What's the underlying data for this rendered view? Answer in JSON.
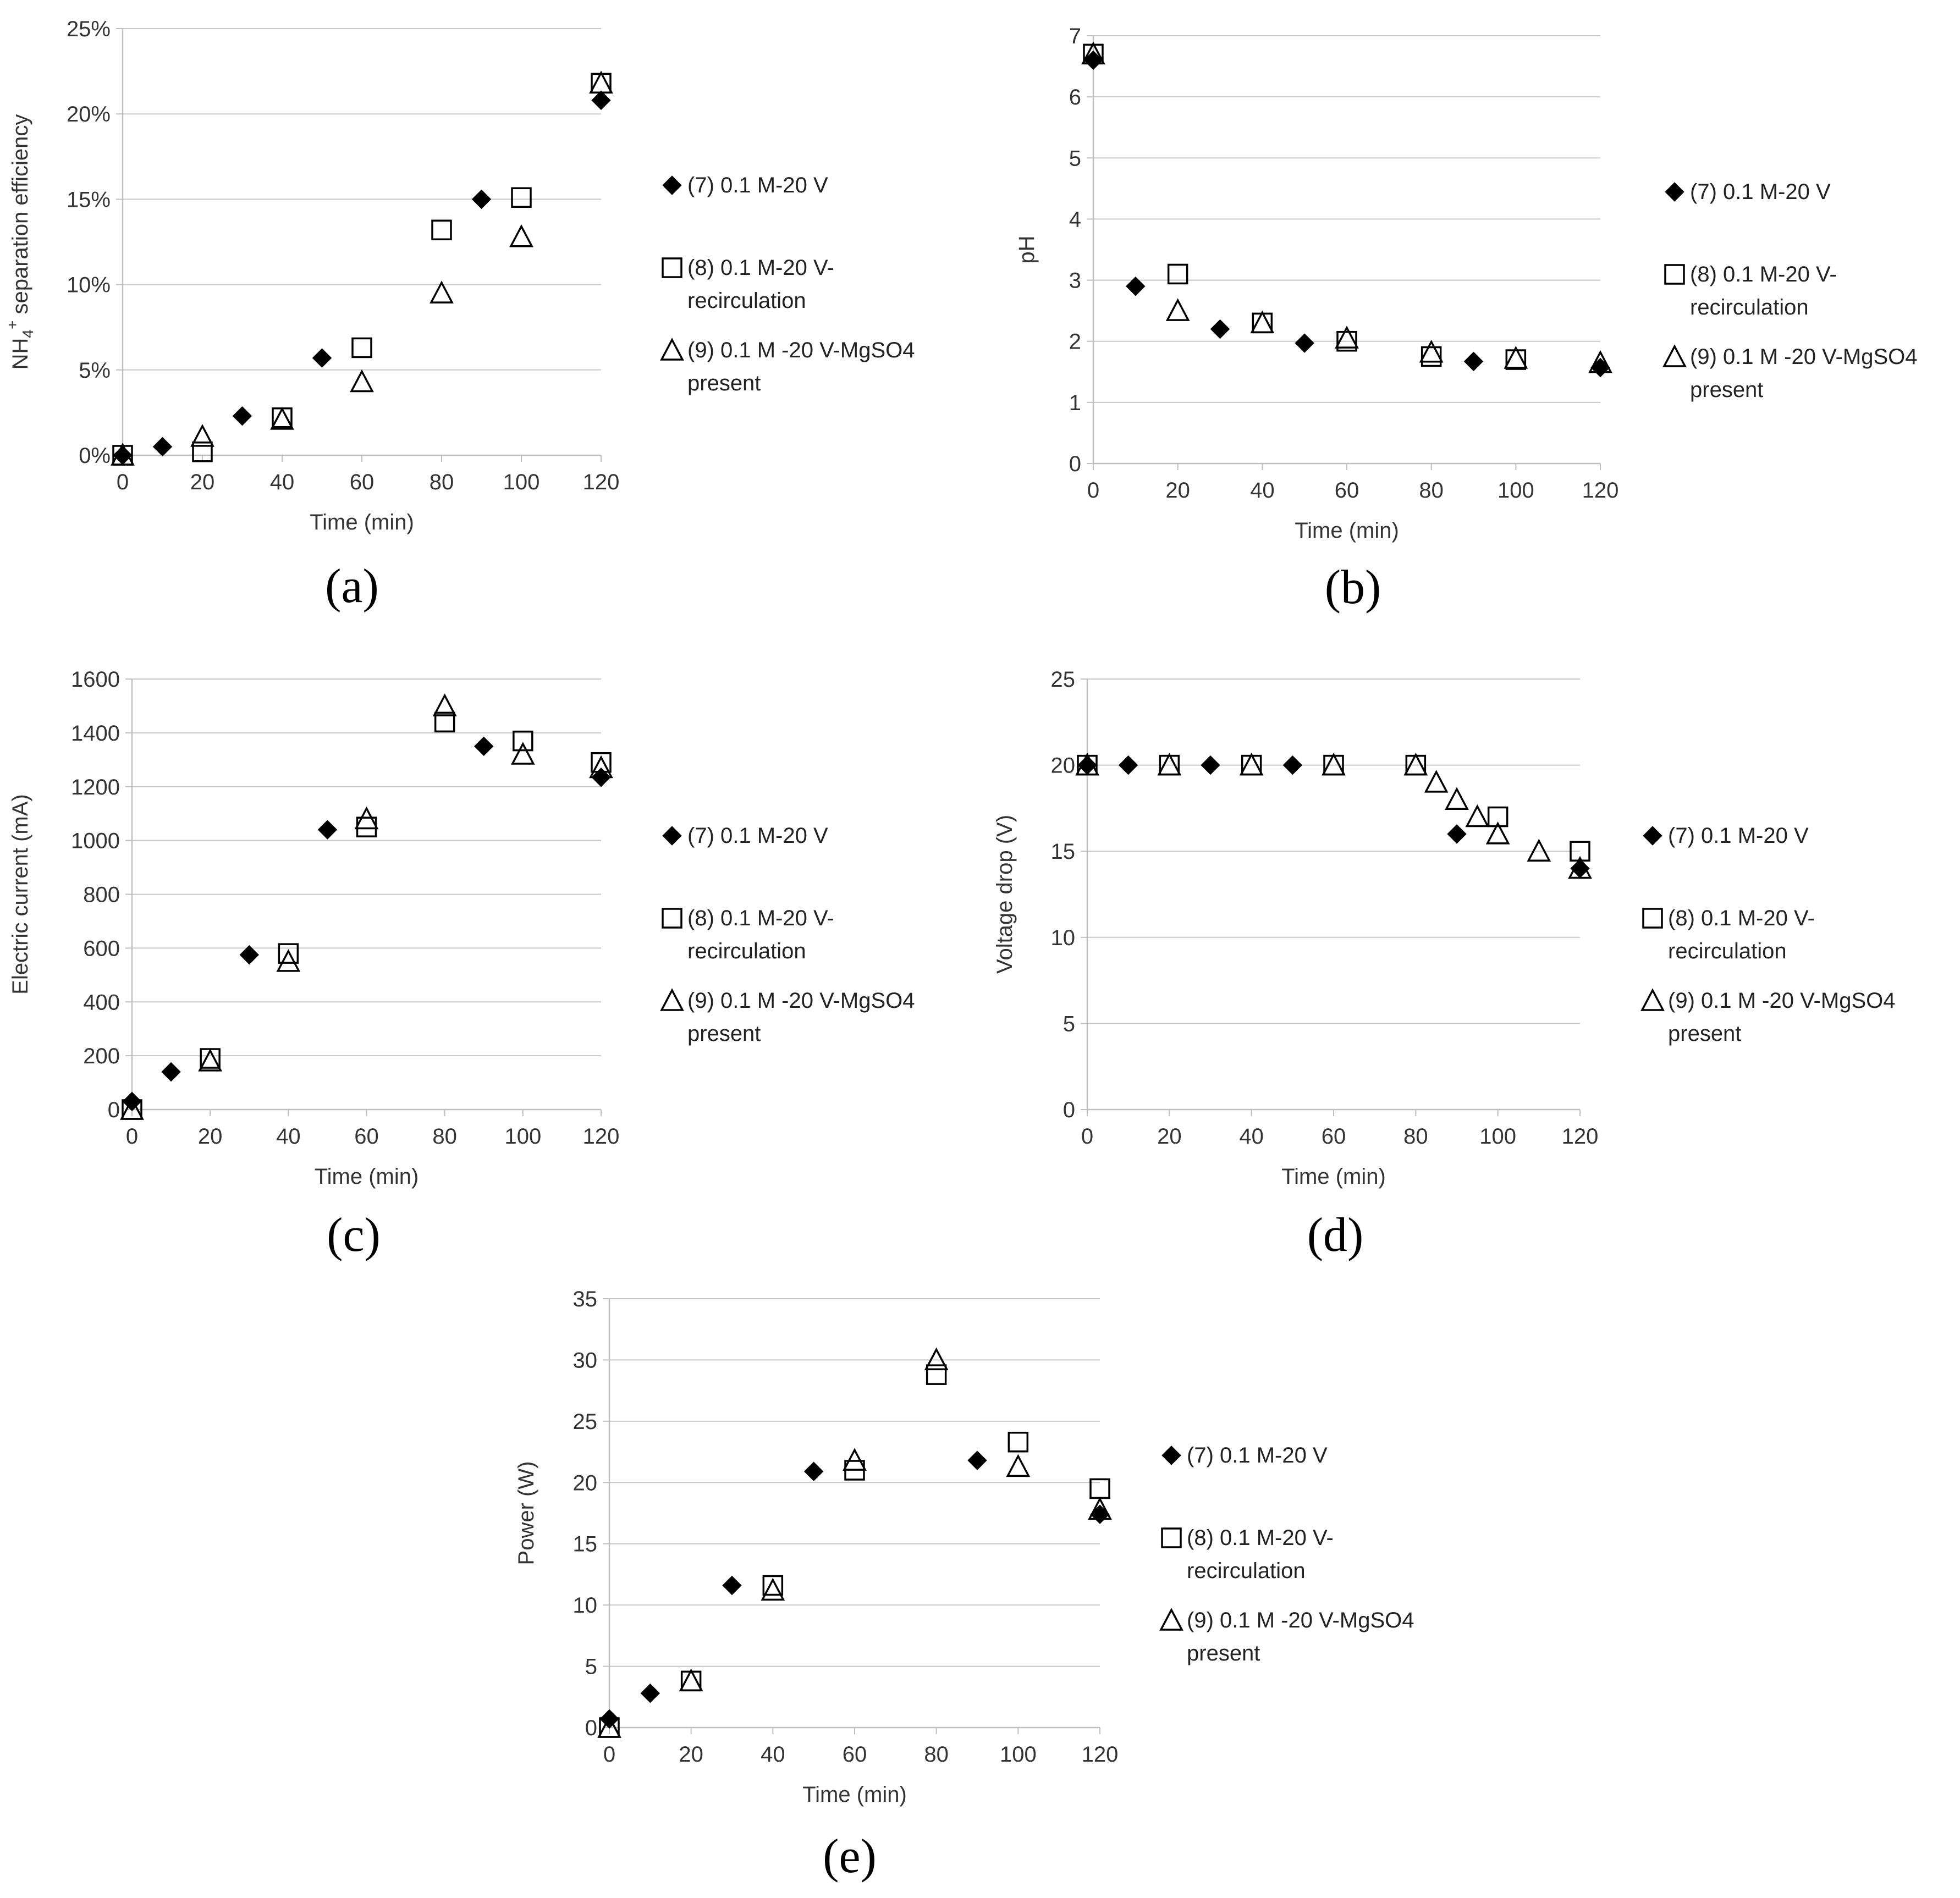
{
  "legend_labels": {
    "s7": "(7) 0.1 M-20 V",
    "s8_line1": "(8) 0.1 M-20 V-",
    "s8_line2": "recirculation",
    "s9_line1": "(9) 0.1 M -20 V-MgSO4",
    "s9_line2": "present"
  },
  "colors": {
    "axis": "#bfbfbf",
    "grid": "#c8c8c8",
    "marker": "#000000"
  },
  "chart_data": [
    {
      "id": "a",
      "panel_label": "(a)",
      "type": "scatter",
      "xlabel": "Time (min)",
      "ylabel_main": "NH",
      "ylabel_sub": "4",
      "ylabel_sup": "+",
      "ylabel_rest": " separation efficiency",
      "xlim": [
        0,
        120
      ],
      "ylim": [
        0,
        25
      ],
      "xticks": [
        0,
        20,
        40,
        60,
        80,
        100,
        120
      ],
      "yticks": [
        0,
        5,
        10,
        15,
        20,
        25
      ],
      "ytick_labels": [
        "0%",
        "5%",
        "10%",
        "15%",
        "20%",
        "25%"
      ],
      "grid": true,
      "legend": "right",
      "series": [
        {
          "key": "s7",
          "marker": "diamond",
          "x": [
            0,
            10,
            30,
            50,
            90,
            120
          ],
          "y": [
            0,
            0.5,
            2.3,
            5.7,
            15.0,
            20.8
          ]
        },
        {
          "key": "s8",
          "marker": "square",
          "x": [
            0,
            20,
            40,
            60,
            80,
            100,
            120
          ],
          "y": [
            0,
            0.2,
            2.2,
            6.3,
            13.2,
            15.1,
            21.8
          ]
        },
        {
          "key": "s9",
          "marker": "triangle",
          "x": [
            0,
            20,
            40,
            60,
            80,
            100,
            120
          ],
          "y": [
            0,
            1.1,
            2.1,
            4.3,
            9.5,
            12.8,
            21.8
          ]
        }
      ]
    },
    {
      "id": "b",
      "panel_label": "(b)",
      "type": "scatter",
      "xlabel": "Time (min)",
      "ylabel_main": "pH",
      "xlim": [
        0,
        120
      ],
      "ylim": [
        0,
        7
      ],
      "xticks": [
        0,
        20,
        40,
        60,
        80,
        100,
        120
      ],
      "yticks": [
        0,
        1,
        2,
        3,
        4,
        5,
        6,
        7
      ],
      "ytick_labels": [
        "0",
        "1",
        "2",
        "3",
        "4",
        "5",
        "6",
        "7"
      ],
      "grid": true,
      "legend": "right",
      "series": [
        {
          "key": "s7",
          "marker": "diamond",
          "x": [
            0,
            10,
            30,
            50,
            90,
            120
          ],
          "y": [
            6.6,
            2.9,
            2.2,
            1.97,
            1.67,
            1.57
          ]
        },
        {
          "key": "s8",
          "marker": "square",
          "x": [
            0,
            20,
            40,
            60,
            80,
            100
          ],
          "y": [
            6.7,
            3.1,
            2.3,
            2.0,
            1.75,
            1.7
          ]
        },
        {
          "key": "s9",
          "marker": "triangle",
          "x": [
            0,
            20,
            40,
            60,
            80,
            100,
            120
          ],
          "y": [
            6.7,
            2.5,
            2.3,
            2.05,
            1.82,
            1.72,
            1.65
          ]
        }
      ]
    },
    {
      "id": "c",
      "panel_label": "(c)",
      "type": "scatter",
      "xlabel": "Time (min)",
      "ylabel_main": "Electric current (mA)",
      "xlim": [
        0,
        120
      ],
      "ylim": [
        0,
        1600
      ],
      "xticks": [
        0,
        20,
        40,
        60,
        80,
        100,
        120
      ],
      "yticks": [
        0,
        200,
        400,
        600,
        800,
        1000,
        1200,
        1400,
        1600
      ],
      "ytick_labels": [
        "0",
        "200",
        "400",
        "600",
        "800",
        "1000",
        "1200",
        "1400",
        "1600"
      ],
      "grid": true,
      "legend": "right",
      "series": [
        {
          "key": "s7",
          "marker": "diamond",
          "x": [
            0,
            10,
            30,
            50,
            90,
            120
          ],
          "y": [
            30,
            140,
            575,
            1040,
            1350,
            1235
          ]
        },
        {
          "key": "s8",
          "marker": "square",
          "x": [
            0,
            20,
            40,
            60,
            80,
            100,
            120
          ],
          "y": [
            0,
            190,
            580,
            1050,
            1440,
            1370,
            1290
          ]
        },
        {
          "key": "s9",
          "marker": "triangle",
          "x": [
            0,
            20,
            40,
            60,
            80,
            100,
            120
          ],
          "y": [
            0,
            180,
            550,
            1080,
            1500,
            1320,
            1270
          ]
        }
      ]
    },
    {
      "id": "d",
      "panel_label": "(d)",
      "type": "scatter",
      "xlabel": "Time (min)",
      "ylabel_main": "Voltage drop (V)",
      "xlim": [
        0,
        120
      ],
      "ylim": [
        0,
        25
      ],
      "xticks": [
        0,
        20,
        40,
        60,
        80,
        100,
        120
      ],
      "yticks": [
        0,
        5,
        10,
        15,
        20,
        25
      ],
      "ytick_labels": [
        "0",
        "5",
        "10",
        "15",
        "20",
        "25"
      ],
      "grid": true,
      "legend": "right",
      "series": [
        {
          "key": "s7",
          "marker": "diamond",
          "x": [
            0,
            10,
            30,
            50,
            90,
            120
          ],
          "y": [
            20,
            20,
            20,
            20,
            16,
            14
          ]
        },
        {
          "key": "s8",
          "marker": "square",
          "x": [
            0,
            20,
            40,
            60,
            80,
            100,
            120
          ],
          "y": [
            20,
            20,
            20,
            20,
            20,
            17,
            15
          ]
        },
        {
          "key": "s9",
          "marker": "triangle",
          "x": [
            0,
            20,
            40,
            60,
            80,
            85,
            90,
            95,
            100,
            110,
            120
          ],
          "y": [
            20,
            20,
            20,
            20,
            20,
            19,
            18,
            17,
            16,
            15,
            14
          ]
        }
      ]
    },
    {
      "id": "e",
      "panel_label": "(e)",
      "type": "scatter",
      "xlabel": "Time (min)",
      "ylabel_main": "Power (W)",
      "xlim": [
        0,
        120
      ],
      "ylim": [
        0,
        35
      ],
      "xticks": [
        0,
        20,
        40,
        60,
        80,
        100,
        120
      ],
      "yticks": [
        0,
        5,
        10,
        15,
        20,
        25,
        30,
        35
      ],
      "ytick_labels": [
        "0",
        "5",
        "10",
        "15",
        "20",
        "25",
        "30",
        "35"
      ],
      "grid": true,
      "legend": "right",
      "series": [
        {
          "key": "s7",
          "marker": "diamond",
          "x": [
            0,
            10,
            30,
            50,
            90,
            120
          ],
          "y": [
            0.7,
            2.8,
            11.6,
            20.9,
            21.8,
            17.4
          ]
        },
        {
          "key": "s8",
          "marker": "square",
          "x": [
            0,
            20,
            40,
            60,
            80,
            100,
            120
          ],
          "y": [
            0,
            3.8,
            11.6,
            21.0,
            28.8,
            23.3,
            19.5
          ]
        },
        {
          "key": "s9",
          "marker": "triangle",
          "x": [
            0,
            20,
            40,
            60,
            80,
            100,
            120
          ],
          "y": [
            0,
            3.8,
            11.2,
            21.8,
            30.0,
            21.3,
            17.8
          ]
        }
      ]
    }
  ]
}
